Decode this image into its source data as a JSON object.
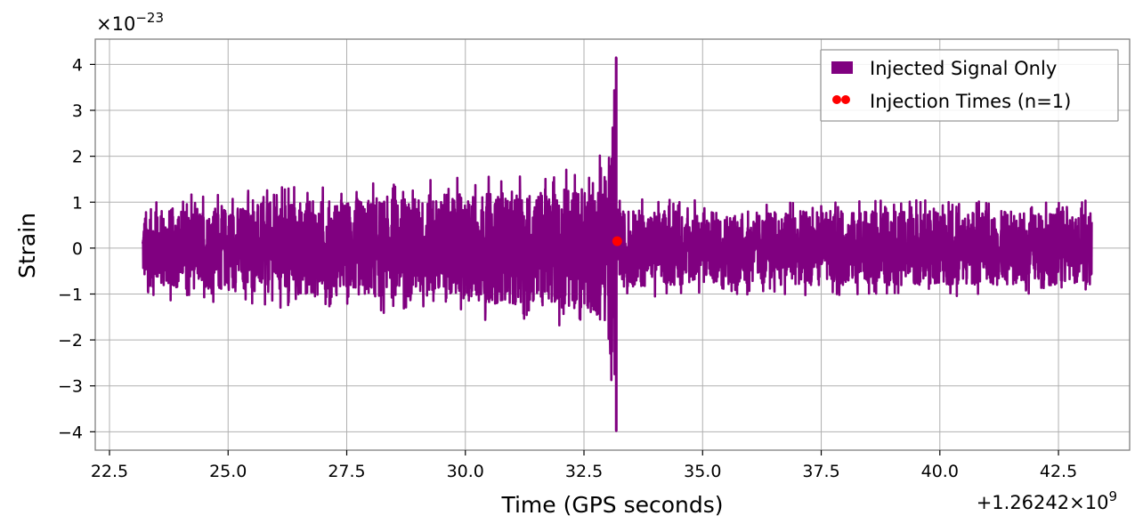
{
  "chart_data": {
    "type": "line",
    "title": "",
    "xlabel": "Time (GPS seconds)",
    "ylabel": "Strain",
    "x_offset_label": "+1.26242×10",
    "x_offset_exponent": "9",
    "y_scale_label": "×10",
    "y_scale_exponent": "−23",
    "xlim": [
      22.2,
      44.0
    ],
    "ylim": [
      -4.4,
      4.55
    ],
    "x_ticks": [
      22.5,
      25.0,
      27.5,
      30.0,
      32.5,
      35.0,
      37.5,
      40.0,
      42.5
    ],
    "x_tick_labels": [
      "22.5",
      "25.0",
      "27.5",
      "30.0",
      "32.5",
      "35.0",
      "37.5",
      "40.0",
      "42.5"
    ],
    "y_ticks": [
      -4,
      -3,
      -2,
      -1,
      0,
      1,
      2,
      3,
      4
    ],
    "y_tick_labels": [
      "−4",
      "−3",
      "−2",
      "−1",
      "0",
      "1",
      "2",
      "3",
      "4"
    ],
    "grid": true,
    "legend_position": "top-right",
    "series": [
      {
        "name": "Injected Signal Only",
        "color": "#800080",
        "kind": "strain-timeseries",
        "x_start": 23.2,
        "x_end": 43.2,
        "merger_time": 33.18,
        "pre_merger_envelope": [
          [
            23.2,
            1.0
          ],
          [
            24.0,
            1.05
          ],
          [
            25.0,
            1.1
          ],
          [
            26.0,
            1.2
          ],
          [
            27.0,
            1.25
          ],
          [
            28.0,
            1.3
          ],
          [
            29.0,
            1.35
          ],
          [
            30.0,
            1.4
          ],
          [
            31.0,
            1.45
          ],
          [
            31.5,
            1.5
          ],
          [
            32.0,
            1.55
          ],
          [
            32.5,
            1.6
          ],
          [
            32.8,
            1.8
          ],
          [
            33.0,
            2.2
          ],
          [
            33.1,
            3.2
          ],
          [
            33.18,
            4.15
          ]
        ],
        "post_merger_envelope": [
          [
            33.2,
            1.0
          ],
          [
            35.0,
            0.95
          ],
          [
            38.0,
            0.95
          ],
          [
            40.0,
            0.95
          ],
          [
            43.2,
            0.95
          ]
        ],
        "min_value": -3.98,
        "max_value": 4.15
      },
      {
        "name": "Injection Times (n=1)",
        "color": "#ff0000",
        "kind": "points",
        "points": [
          [
            33.2,
            0.15
          ]
        ]
      }
    ]
  }
}
